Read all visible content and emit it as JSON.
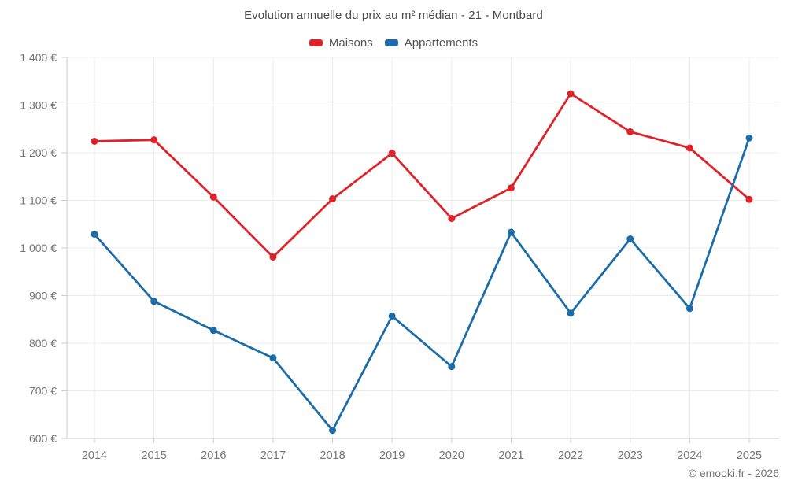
{
  "title": "Evolution annuelle du prix au m² médian - 21 - Montbard",
  "footer": {
    "credit": "© emooki.fr - 2026"
  },
  "legend": {
    "items": [
      {
        "label": "Maisons",
        "color": "#df2128"
      },
      {
        "label": "Appartements",
        "color": "#1b6ca8"
      }
    ]
  },
  "chart_data": {
    "type": "line",
    "title": "Evolution annuelle du prix au m² médian - 21 - Montbard",
    "xlabel": "",
    "ylabel": "",
    "categories": [
      "2014",
      "2015",
      "2016",
      "2017",
      "2018",
      "2019",
      "2020",
      "2021",
      "2022",
      "2023",
      "2024",
      "2025"
    ],
    "series": [
      {
        "name": "Maisons",
        "color": "#df2128",
        "values": [
          1224,
          1227,
          1107,
          981,
          1103,
          1199,
          1062,
          1126,
          1324,
          1244,
          1210,
          1102
        ]
      },
      {
        "name": "Appartements",
        "color": "#1b6ca8",
        "values": [
          1029,
          888,
          827,
          769,
          617,
          857,
          751,
          1033,
          863,
          1019,
          873,
          1231
        ]
      }
    ],
    "ylim": [
      600,
      1400
    ],
    "yticks": [
      {
        "value": 600,
        "label": "600 €"
      },
      {
        "value": 700,
        "label": "700 €"
      },
      {
        "value": 800,
        "label": "800 €"
      },
      {
        "value": 900,
        "label": "900 €"
      },
      {
        "value": 1000,
        "label": "1 000 €"
      },
      {
        "value": 1100,
        "label": "1 100 €"
      },
      {
        "value": 1200,
        "label": "1 200 €"
      },
      {
        "value": 1300,
        "label": "1 300 €"
      },
      {
        "value": 1400,
        "label": "1 400 €"
      }
    ],
    "grid": true,
    "legend_position": "top",
    "unit": "€"
  },
  "colors": {
    "grid_line": "#ececec",
    "axis_line": "#cccccc",
    "tick_label": "#757575",
    "title_text": "#4a4a4a",
    "legend_text": "#555555",
    "background": "#ffffff"
  }
}
